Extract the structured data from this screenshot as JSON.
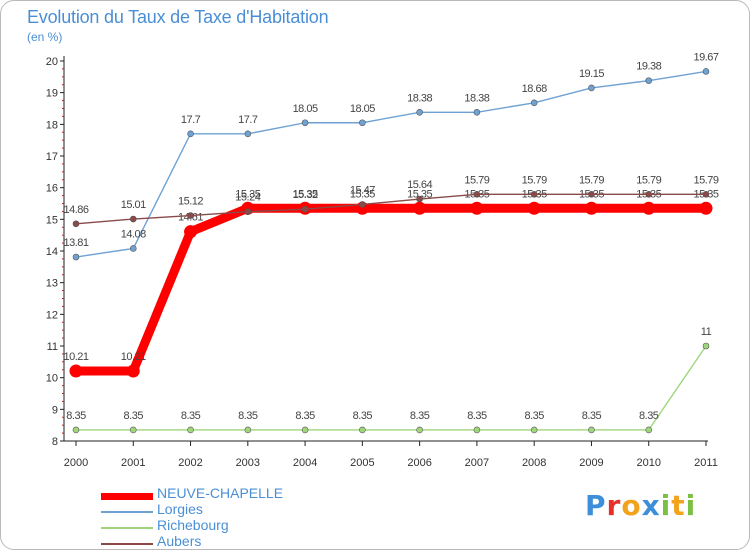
{
  "chart_data": {
    "type": "line",
    "title": "Evolution du Taux de Taxe d'Habitation",
    "subtitle": "(en %)",
    "x": [
      "2000",
      "2001",
      "2002",
      "2003",
      "2004",
      "2005",
      "2006",
      "2007",
      "2008",
      "2009",
      "2010",
      "2011"
    ],
    "ylim": [
      8,
      20
    ],
    "yticks": [
      "8",
      "9",
      "10",
      "11",
      "12",
      "13",
      "14",
      "15",
      "16",
      "17",
      "18",
      "19",
      "20"
    ],
    "grid": false,
    "legend_position": "bottom-left",
    "series": [
      {
        "name": "NEUVE-CHAPELLE",
        "color": "#ff0000",
        "values": [
          10.21,
          10.21,
          14.61,
          15.35,
          15.35,
          15.35,
          15.35,
          15.35,
          15.35,
          15.35,
          15.35,
          15.35
        ],
        "labels": [
          "10.21",
          "10.21",
          "14.61",
          "15.35",
          "15.35",
          "15.35",
          "15.35",
          "15.35",
          "15.35",
          "15.35",
          "15.35",
          "15.35"
        ]
      },
      {
        "name": "Lorgies",
        "color": "#6fa2d3",
        "values": [
          13.81,
          14.08,
          17.7,
          17.7,
          18.05,
          18.05,
          18.38,
          18.38,
          18.68,
          19.15,
          19.38,
          19.67
        ],
        "labels": [
          "13.81",
          "14.08",
          "17.7",
          "17.7",
          "18.05",
          "18.05",
          "18.38",
          "18.38",
          "18.68",
          "19.15",
          "19.38",
          "19.67"
        ]
      },
      {
        "name": "Richebourg",
        "color": "#9fd67c",
        "values": [
          8.35,
          8.35,
          8.35,
          8.35,
          8.35,
          8.35,
          8.35,
          8.35,
          8.35,
          8.35,
          8.35,
          11
        ],
        "labels": [
          "8.35",
          "8.35",
          "8.35",
          "8.35",
          "8.35",
          "8.35",
          "8.35",
          "8.35",
          "8.35",
          "8.35",
          "8.35",
          "11"
        ]
      },
      {
        "name": "Aubers",
        "color": "#8a4a4a",
        "values": [
          14.86,
          15.01,
          15.12,
          15.24,
          15.32,
          15.47,
          15.64,
          15.79,
          15.79,
          15.79,
          15.79,
          15.79
        ],
        "labels": [
          "14.86",
          "15.01",
          "15.12",
          "15.24",
          "15.32",
          "15.47",
          "15.64",
          "15.79",
          "15.79",
          "15.79",
          "15.79",
          "15.79"
        ]
      }
    ]
  },
  "logo": {
    "text": "Proxiti"
  }
}
